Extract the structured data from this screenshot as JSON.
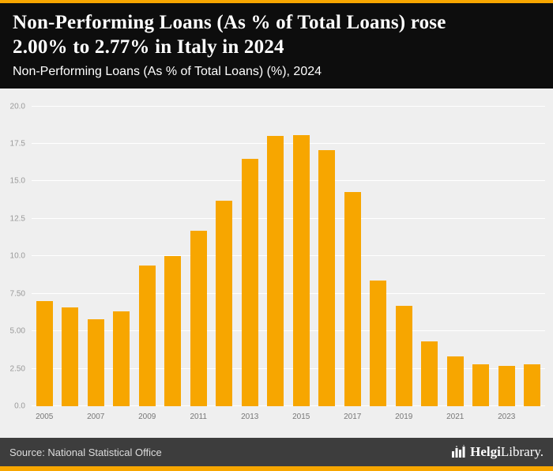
{
  "header": {
    "title_lines": [
      "Non-Performing Loans (As % of Total Loans) rose",
      "2.00% to 2.77% in Italy in 2024"
    ],
    "subtitle": "Non-Performing Loans (As % of Total Loans) (%), 2024"
  },
  "chart_data": {
    "type": "bar",
    "title": "Non-Performing Loans (As % of Total Loans) rose 2.00% to 2.77% in Italy in 2024",
    "subtitle": "Non-Performing Loans (As % of Total Loans) (%), 2024",
    "categories": [
      2005,
      2006,
      2007,
      2008,
      2009,
      2010,
      2011,
      2012,
      2013,
      2014,
      2015,
      2016,
      2017,
      2018,
      2019,
      2020,
      2021,
      2022,
      2023,
      2024
    ],
    "values": [
      7.0,
      6.6,
      5.8,
      6.3,
      9.4,
      10.0,
      11.7,
      13.7,
      16.5,
      18.0,
      18.1,
      17.1,
      14.3,
      8.4,
      6.7,
      4.3,
      3.3,
      2.8,
      2.7,
      2.77
    ],
    "xlabel": "",
    "ylabel": "",
    "ylim": [
      0,
      20.45
    ],
    "yticks": [
      0,
      2.5,
      5,
      7.5,
      10,
      12.5,
      15,
      17.5,
      20
    ],
    "ytick_labels": [
      "0.0",
      "2.50",
      "5.00",
      "7.50",
      "10.0",
      "12.5",
      "15.0",
      "17.5",
      "20.0"
    ],
    "xtick_labels": [
      "2005",
      "2007",
      "2009",
      "2011",
      "2013",
      "2015",
      "2017",
      "2019",
      "2021",
      "2023"
    ],
    "grid": true,
    "legend": false,
    "bar_color": "#F7A600"
  },
  "footer": {
    "source": "Source: National Statistical Office",
    "logo_primary": "Helgi",
    "logo_secondary": "Library."
  },
  "colors": {
    "accent": "#F7A600",
    "header_bg": "#0D0D0D",
    "chart_bg": "#EFEFEF",
    "gridline": "#FFFFFF",
    "footer_bg": "#3D3D3D",
    "bar": "#F7A600",
    "tick_text": "#999999"
  }
}
